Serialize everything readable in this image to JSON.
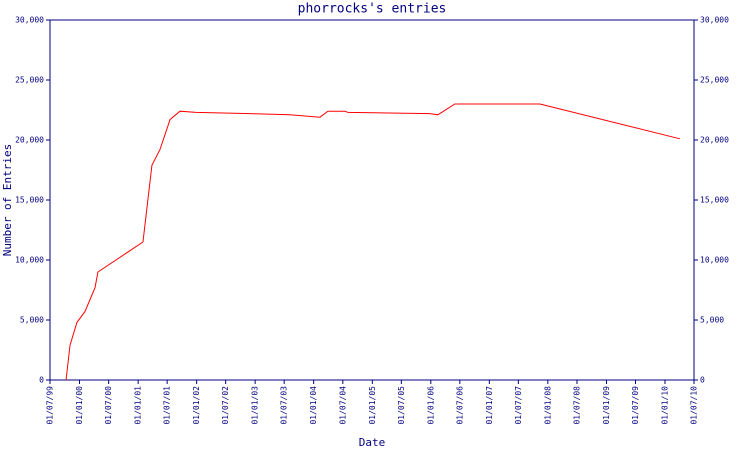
{
  "chart_data": {
    "type": "line",
    "title": "phorrocks's entries",
    "x_label": "Date",
    "y_label": "Number of Entries",
    "x": [
      "1999-10-09",
      "1999-11-03",
      "1999-12-16",
      "2000-02-04",
      "2000-04-07",
      "2000-04-25",
      "2001-01-31",
      "2001-03-28",
      "2001-05-17",
      "2001-07-19",
      "2001-09-19",
      "2001-12-28",
      "2002-11-30",
      "2003-08-06",
      "2004-02-09",
      "2004-03-30",
      "2004-07-14",
      "2004-08-02",
      "2005-12-26",
      "2006-02-14",
      "2006-05-31",
      "2007-11-13",
      "2010-04-04"
    ],
    "values": [
      0,
      2900,
      4800,
      5700,
      7700,
      9000,
      11500,
      17900,
      19200,
      21700,
      22400,
      22300,
      22200,
      22100,
      21900,
      22400,
      22400,
      22300,
      22200,
      22100,
      23000,
      23000,
      20100
    ],
    "color": "#ff0000",
    "xlim": [
      "1999-07-01",
      "2010-07-01"
    ],
    "xticks": [
      {
        "value": "1999-07-01",
        "label": "01/07/99"
      },
      {
        "value": "2000-01-01",
        "label": "01/01/00"
      },
      {
        "value": "2000-07-01",
        "label": "01/07/00"
      },
      {
        "value": "2001-01-01",
        "label": "01/01/01"
      },
      {
        "value": "2001-07-01",
        "label": "01/07/01"
      },
      {
        "value": "2002-01-01",
        "label": "01/01/02"
      },
      {
        "value": "2002-07-01",
        "label": "01/07/02"
      },
      {
        "value": "2003-01-01",
        "label": "01/01/03"
      },
      {
        "value": "2003-07-01",
        "label": "01/07/03"
      },
      {
        "value": "2004-01-01",
        "label": "01/01/04"
      },
      {
        "value": "2004-07-01",
        "label": "01/07/04"
      },
      {
        "value": "2005-01-01",
        "label": "01/01/05"
      },
      {
        "value": "2005-07-01",
        "label": "01/07/05"
      },
      {
        "value": "2006-01-01",
        "label": "01/01/06"
      },
      {
        "value": "2006-07-01",
        "label": "01/07/06"
      },
      {
        "value": "2007-01-01",
        "label": "01/01/07"
      },
      {
        "value": "2007-07-01",
        "label": "01/07/07"
      },
      {
        "value": "2008-01-01",
        "label": "01/01/08"
      },
      {
        "value": "2008-07-01",
        "label": "01/07/08"
      },
      {
        "value": "2009-01-01",
        "label": "01/01/09"
      },
      {
        "value": "2009-07-01",
        "label": "01/07/09"
      },
      {
        "value": "2010-01-01",
        "label": "01/01/10"
      },
      {
        "value": "2010-07-01",
        "label": "01/07/10"
      }
    ],
    "ylim": [
      0,
      30000
    ],
    "yticks": [
      0,
      {
        "value": 5000,
        "label": "5,000"
      },
      {
        "value": 10000,
        "label": "10,000"
      },
      {
        "value": 15000,
        "label": "15,000"
      },
      {
        "value": 20000,
        "label": "20,000"
      },
      {
        "value": 25000,
        "label": "25,000"
      },
      {
        "value": 30000,
        "label": "30,000"
      }
    ],
    "y2lim": [
      0,
      30000
    ],
    "y2ticks": [
      0,
      {
        "value": 5000,
        "label": "5,000"
      },
      {
        "value": 10000,
        "label": "10,000"
      },
      {
        "value": 15000,
        "label": "15,000"
      },
      {
        "value": 20000,
        "label": "20,000"
      },
      {
        "value": 25000,
        "label": "25,000"
      },
      {
        "value": 30000,
        "label": "30,000"
      }
    ]
  }
}
